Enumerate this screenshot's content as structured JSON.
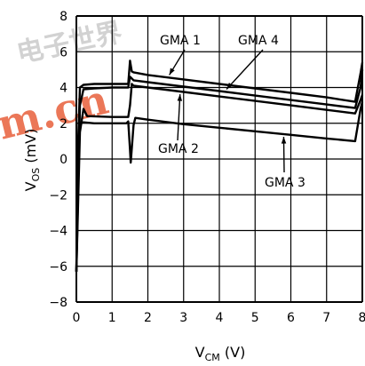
{
  "watermark": {
    "top_text": "电子世界",
    "bottom_text": "m.cn",
    "top_color": "#c8c8c8",
    "bottom_color": "#e8603c"
  },
  "chart_data": {
    "type": "line",
    "title": "",
    "xlabel": {
      "main": "V",
      "sub": "CM",
      "unit": "(V)"
    },
    "ylabel": {
      "main": "V",
      "sub": "OS",
      "unit": "(mV)"
    },
    "xlim": [
      0,
      8
    ],
    "ylim": [
      -8,
      8
    ],
    "x_ticks": [
      "0",
      "1",
      "2",
      "3",
      "4",
      "5",
      "6",
      "7",
      "8"
    ],
    "y_ticks": [
      "8",
      "6",
      "4",
      "2",
      "0",
      "−2",
      "−4",
      "−6",
      "−8"
    ],
    "grid": true,
    "series": [
      {
        "name": "GMA 1",
        "x": [
          0,
          0.05,
          0.1,
          0.2,
          0.5,
          1.0,
          1.45,
          1.5,
          1.55,
          1.6,
          2.0,
          3.0,
          4.0,
          5.0,
          6.0,
          7.0,
          7.8,
          7.95,
          8.0
        ],
        "y": [
          -6.3,
          1.0,
          4.0,
          4.15,
          4.2,
          4.2,
          4.2,
          5.5,
          4.9,
          4.85,
          4.7,
          4.45,
          4.2,
          3.95,
          3.7,
          3.45,
          3.2,
          4.8,
          5.4
        ]
      },
      {
        "name": "GMA 4",
        "x": [
          0,
          0.1,
          0.2,
          0.5,
          1.0,
          1.45,
          1.5,
          1.55,
          1.6,
          2.0,
          3.0,
          4.0,
          5.0,
          6.0,
          7.0,
          7.8,
          7.95,
          8.0
        ],
        "y": [
          -6.3,
          3.0,
          3.9,
          3.95,
          4.0,
          4.0,
          4.6,
          4.5,
          4.4,
          4.3,
          4.05,
          3.8,
          3.55,
          3.3,
          3.05,
          2.85,
          4.0,
          5.0
        ]
      },
      {
        "name": "GMA 2",
        "x": [
          0,
          0.1,
          0.2,
          0.3,
          1.0,
          1.45,
          1.5,
          1.55,
          1.6,
          2.0,
          3.0,
          4.0,
          5.0,
          6.0,
          7.0,
          7.8,
          7.95,
          8.0
        ],
        "y": [
          -6.3,
          1.5,
          2.8,
          2.4,
          2.35,
          2.35,
          3.0,
          4.2,
          4.1,
          4.0,
          3.75,
          3.5,
          3.25,
          3.0,
          2.75,
          2.55,
          3.3,
          3.6
        ]
      },
      {
        "name": "GMA 3",
        "x": [
          0,
          0.05,
          0.1,
          0.2,
          0.5,
          1.0,
          1.4,
          1.45,
          1.5,
          1.52,
          1.6,
          1.65,
          2.0,
          3.0,
          4.0,
          5.0,
          6.0,
          7.0,
          7.8,
          7.95,
          8.0
        ],
        "y": [
          -6.3,
          0.5,
          2.0,
          2.05,
          2.0,
          2.0,
          2.0,
          2.1,
          0.5,
          -0.2,
          1.9,
          2.3,
          2.2,
          1.95,
          1.75,
          1.55,
          1.35,
          1.15,
          1.0,
          2.8,
          3.2
        ]
      }
    ],
    "annotations": [
      {
        "text": "GMA 1",
        "series": "GMA 1"
      },
      {
        "text": "GMA 4",
        "series": "GMA 4"
      },
      {
        "text": "GMA 2",
        "series": "GMA 2"
      },
      {
        "text": "GMA 3",
        "series": "GMA 3"
      }
    ]
  }
}
